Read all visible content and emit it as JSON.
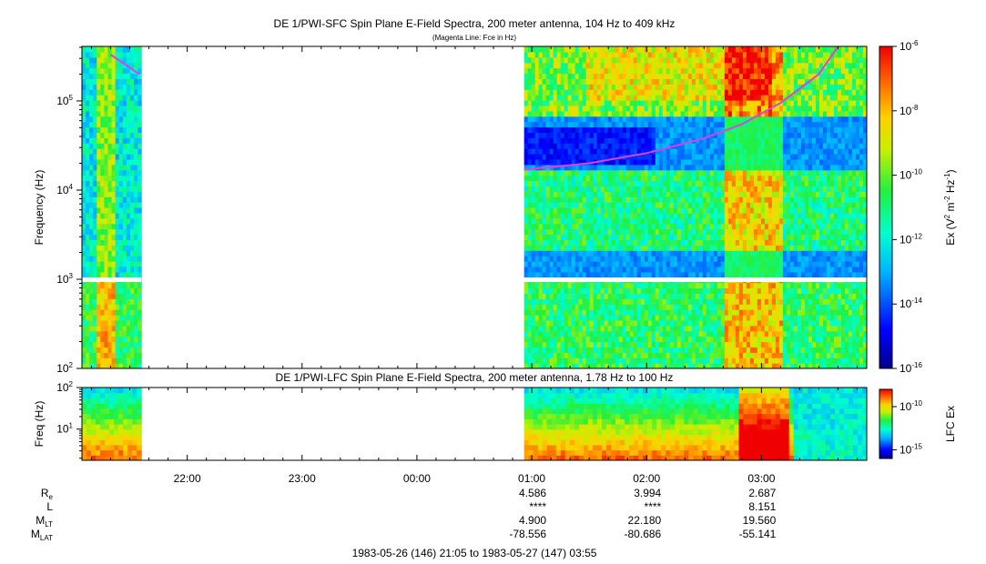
{
  "chart_data": [
    {
      "type": "heatmap",
      "title": "DE 1/PWI-SFC  Spin Plane E-Field Spectra, 200 meter antenna, 104 Hz to 409 kHz",
      "subtitle": "(Magenta Line: Fce in Hz)",
      "ylabel": "Frequency (Hz)",
      "yscale": "log",
      "ylim": [
        100,
        409000
      ],
      "y_ticks": [
        {
          "value": 100,
          "base": "10",
          "exp": "2"
        },
        {
          "value": 1000,
          "base": "10",
          "exp": "3"
        },
        {
          "value": 10000,
          "base": "10",
          "exp": "4"
        },
        {
          "value": 100000,
          "base": "10",
          "exp": "5"
        }
      ],
      "colorbar": {
        "label": "Ex (V",
        "label_exp1": "2",
        "label_mid": " m",
        "label_exp2": "-2",
        "label_mid2": " Hz",
        "label_exp3": "-1",
        "label_end": ")",
        "scale": "log",
        "range": [
          1e-16,
          1e-06
        ],
        "ticks": [
          {
            "value": 1e-06,
            "base": "10",
            "exp": "-6"
          },
          {
            "value": 1e-08,
            "base": "10",
            "exp": "-8"
          },
          {
            "value": 1e-10,
            "base": "10",
            "exp": "-10"
          },
          {
            "value": 1e-12,
            "base": "10",
            "exp": "-12"
          },
          {
            "value": 1e-14,
            "base": "10",
            "exp": "-14"
          },
          {
            "value": 1e-16,
            "base": "10",
            "exp": "-16"
          }
        ]
      },
      "data_coverage": [
        {
          "start": "21:05",
          "end": "21:36"
        },
        {
          "start": "00:56",
          "end": "03:55"
        }
      ],
      "fce_line_color": "#e040e0",
      "fce_line": [
        {
          "time": "21:20",
          "freq_hz": 330000
        },
        {
          "time": "21:35",
          "freq_hz": 200000
        },
        {
          "time": "00:56",
          "freq_hz": 17000
        },
        {
          "time": "01:30",
          "freq_hz": 20000
        },
        {
          "time": "02:00",
          "freq_hz": 26000
        },
        {
          "time": "02:30",
          "freq_hz": 38000
        },
        {
          "time": "02:50",
          "freq_hz": 55000
        },
        {
          "time": "03:10",
          "freq_hz": 95000
        },
        {
          "time": "03:30",
          "freq_hz": 200000
        },
        {
          "time": "03:40",
          "freq_hz": 409000
        }
      ]
    },
    {
      "type": "heatmap",
      "title": "DE 1/PWI-LFC  Spin Plane E-Field Spectra, 200 meter antenna, 1.78 Hz to 100 Hz",
      "ylabel": "Freq (Hz)",
      "yscale": "log",
      "ylim": [
        1.78,
        100
      ],
      "y_ticks": [
        {
          "value": 10,
          "base": "10",
          "exp": "1"
        },
        {
          "value": 100,
          "base": "10",
          "exp": "2"
        }
      ],
      "colorbar": {
        "label": "LFC Ex",
        "scale": "log",
        "range": [
          1e-16,
          1e-08
        ],
        "ticks": [
          {
            "value": 1e-10,
            "base": "10",
            "exp": "-10"
          },
          {
            "value": 1e-15,
            "base": "10",
            "exp": "-15"
          }
        ]
      },
      "data_coverage": [
        {
          "start": "21:05",
          "end": "21:36"
        },
        {
          "start": "00:56",
          "end": "03:55"
        }
      ]
    }
  ],
  "time_axis": {
    "start": "21:05",
    "end": "03:55",
    "ticks": [
      "22:00",
      "23:00",
      "00:00",
      "01:00",
      "02:00",
      "03:00"
    ]
  },
  "ephemeris": {
    "rows": [
      {
        "label": "R",
        "sub": "e",
        "values": [
          "4.586",
          "3.994",
          "2.687"
        ]
      },
      {
        "label": "L",
        "sub": "",
        "values": [
          "****",
          "****",
          "8.151"
        ]
      },
      {
        "label": "M",
        "sub": "LT",
        "values": [
          "4.900",
          "22.180",
          "19.560"
        ]
      },
      {
        "label": "M",
        "sub": "LAT",
        "values": [
          "-78.556",
          "-80.686",
          "-55.141"
        ]
      }
    ],
    "columns_at": [
      "01:00",
      "02:00",
      "03:00"
    ]
  },
  "footer": "1983-05-26 (146) 21:05 to 1983-05-27 (147) 03:55"
}
